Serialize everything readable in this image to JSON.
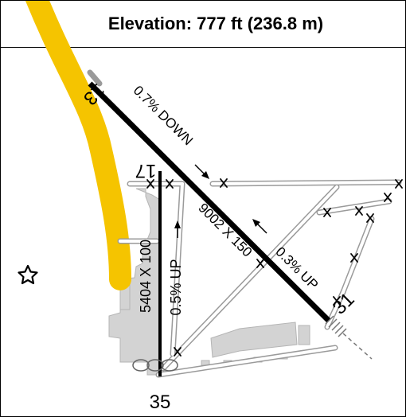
{
  "header": {
    "elevation_label": "Elevation: 777 ft (236.8 m)"
  },
  "runways": {
    "main": {
      "end_a": "13",
      "end_b": "31",
      "dimensions": "9002 X 150",
      "slope_a": "0.7% DOWN",
      "slope_b": "0.3% UP"
    },
    "secondary": {
      "end_a": "17",
      "end_b": "35",
      "dimensions": "5404 X 100",
      "slope": "0.5% UP"
    }
  },
  "symbols": {
    "beacon": "star-icon",
    "closed_taxiway": "x-marker-icon"
  },
  "colors": {
    "highlight_path": "#F5C400",
    "pavement": "#D3D3D3",
    "runway": "#000000",
    "taxiway_outline": "#9A9A9A"
  }
}
